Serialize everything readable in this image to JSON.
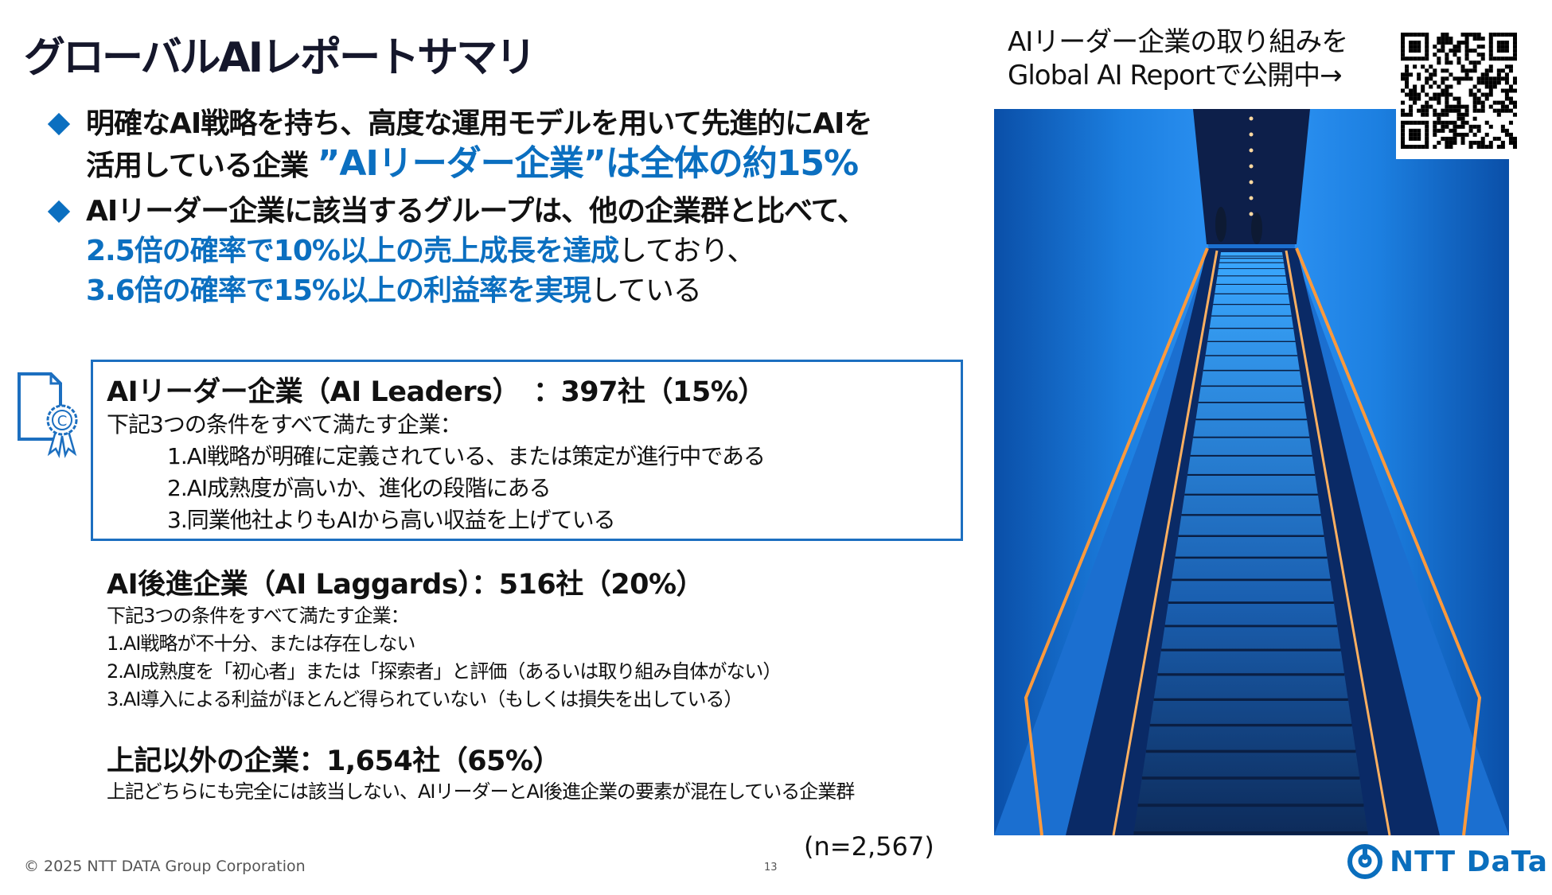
{
  "title": "グローバルAIレポートサマリ",
  "bullets": [
    {
      "line1": "明確なAI戦略を持ち、高度な運用モデルを用いて先進的にAIを",
      "line2_black": "活用している企業 ",
      "line2_blue": "”AIリーダー企業”は全体の約15%"
    },
    {
      "line1": "AIリーダー企業に該当するグループは、他の企業群と比べて、",
      "line2_blue": "2.5倍の確率で10%以上の売上成長を達成",
      "line2_black": "しており、",
      "line3_blue": "3.6倍の確率で15%以上の利益率を実現",
      "line3_black": "している"
    }
  ],
  "leaders": {
    "heading": "AIリーダー企業（AI Leaders）　：397社（15%）",
    "intro": "下記3つの条件をすべて満たす企業：",
    "items": [
      "1.AI戦略が明確に定義されている、または策定が進行中である",
      "2.AI成熟度が高いか、進化の段階にある",
      "3.同業他社よりもAIから高い収益を上げている"
    ]
  },
  "laggards": {
    "heading": "AI後進企業（AI Laggards）：516社（20%）",
    "intro": "下記3つの条件をすべて満たす企業：",
    "items": [
      "1.AI戦略が不十分、または存在しない",
      "2.AI成熟度を「初心者」または「探索者」と評価（あるいは取り組み自体がない）",
      "3.AI導入による利益がほとんど得られていない（もしくは損失を出している）"
    ]
  },
  "others": {
    "heading": "上記以外の企業：1,654社（65%）",
    "desc": "上記どちらにも完全には該当しない、AIリーダーとAI後進企業の要素が混在している企業群"
  },
  "sample_size": "(n=2,567)",
  "promo": {
    "line1": "AIリーダー企業の取り組みを",
    "line2": "Global AI Reportで公開中→"
  },
  "footer": {
    "copyright": "© 2025 NTT DATA Group Corporation",
    "page": "13"
  },
  "logo": {
    "text": "NTT DaTa"
  },
  "colors": {
    "accent": "#0b6fc0",
    "title": "#15172b",
    "logo": "#0a6ebd"
  },
  "icons": {
    "certificate": "certificate-icon",
    "qr": "qr-code"
  }
}
